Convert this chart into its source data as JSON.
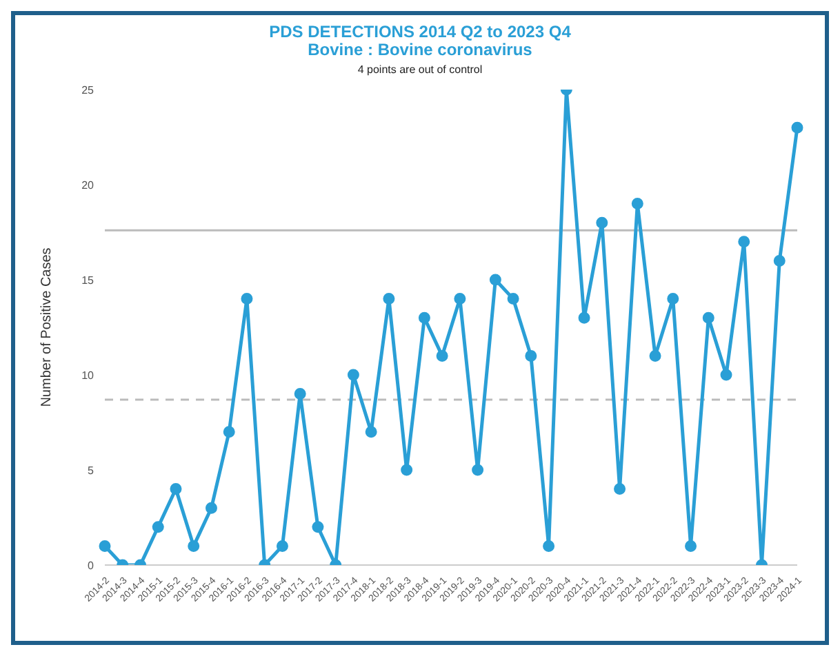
{
  "chart_data": {
    "type": "line",
    "title": "PDS DETECTIONS 2014 Q2 to 2023 Q4",
    "subtitle": "Bovine : Bovine coronavirus",
    "annotations": [
      "4 points are out of control"
    ],
    "ylabel": "Number of Positive Cases",
    "categories": [
      "2014-2",
      "2014-3",
      "2014-4",
      "2015-1",
      "2015-2",
      "2015-3",
      "2015-4",
      "2016-1",
      "2016-2",
      "2016-3",
      "2016-4",
      "2017-1",
      "2017-2",
      "2017-3",
      "2017-4",
      "2018-1",
      "2018-2",
      "2018-3",
      "2018-4",
      "2019-1",
      "2019-2",
      "2019-3",
      "2019-4",
      "2020-1",
      "2020-2",
      "2020-3",
      "2020-4",
      "2021-1",
      "2021-2",
      "2021-3",
      "2021-4",
      "2022-1",
      "2022-2",
      "2022-3",
      "2022-4",
      "2023-1",
      "2023-2",
      "2023-3",
      "2023-4",
      "2024-1"
    ],
    "series": [
      {
        "color": "#2a9fd6",
        "values": [
          1,
          0,
          0,
          2,
          4,
          1,
          3,
          7,
          14,
          0,
          1,
          9,
          2,
          0,
          10,
          7,
          14,
          5,
          13,
          11,
          14,
          5,
          15,
          14,
          11,
          1,
          25,
          13,
          18,
          4,
          19,
          11,
          14,
          1,
          13,
          10,
          17,
          0,
          16,
          23
        ]
      }
    ],
    "ylim": [
      0,
      25
    ],
    "yticks": [
      0,
      5,
      10,
      15,
      20,
      25
    ],
    "grid": false,
    "legend": false,
    "marker": "circle",
    "line_style": "solid",
    "ref_lines": [
      {
        "axis": "y",
        "value": 17.6,
        "color": "#bbbbbb",
        "line_style": "solid"
      },
      {
        "axis": "y",
        "value": 8.7,
        "color": "#bbbbbb",
        "line_style": "dashed"
      }
    ]
  }
}
